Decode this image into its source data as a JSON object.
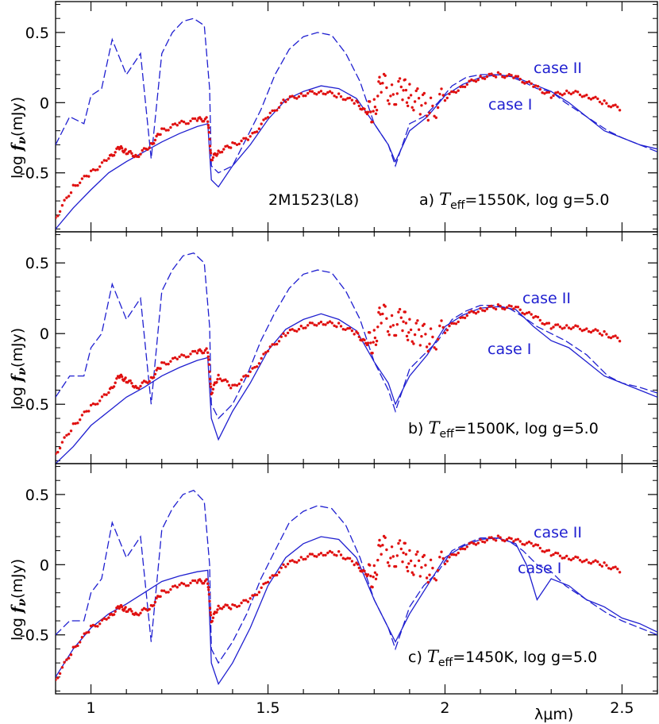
{
  "chart_data": [
    {
      "panel": "a",
      "type": "line",
      "object_label": "2M1523(L8)",
      "label_prefix": "a)",
      "teff_symbol": "T",
      "teff_sub": "eff",
      "teff_value": "=1550K, log g=5.0",
      "ylabel_prefix": "log",
      "ylabel_f": "f",
      "ylabel_nu": "ν",
      "ylabel_unit": "(mJy)",
      "case_ii_label": "case II",
      "case_i_label": "case I",
      "xlim": [
        0.9,
        2.6
      ],
      "ylim": [
        -0.92,
        0.72
      ],
      "yticks": [
        "0.5",
        "0",
        "-0.5"
      ],
      "ytick_values": [
        0.5,
        0,
        -0.5
      ],
      "series": [
        {
          "name": "",
          "style": "dashed",
          "color": "#1f1fd0",
          "x": [
            0.9,
            0.94,
            0.98,
            1.0,
            1.03,
            1.06,
            1.1,
            1.14,
            1.17,
            1.2,
            1.23,
            1.26,
            1.29,
            1.32,
            1.335,
            1.34,
            1.36,
            1.4,
            1.44,
            1.48,
            1.52,
            1.56,
            1.6,
            1.64,
            1.68,
            1.72,
            1.76,
            1.8,
            1.84,
            1.86,
            1.9,
            1.94,
            1.98,
            2.02,
            2.06,
            2.1,
            2.14,
            2.18,
            2.22,
            2.26,
            2.3,
            2.34,
            2.4,
            2.46,
            2.5,
            2.55,
            2.6
          ],
          "y": [
            -0.3,
            -0.1,
            -0.15,
            0.05,
            0.1,
            0.45,
            0.2,
            0.35,
            -0.4,
            0.35,
            0.5,
            0.58,
            0.6,
            0.55,
            0.1,
            -0.45,
            -0.5,
            -0.45,
            -0.25,
            -0.05,
            0.2,
            0.38,
            0.47,
            0.5,
            0.48,
            0.35,
            0.15,
            -0.15,
            -0.3,
            -0.45,
            -0.15,
            -0.1,
            0.0,
            0.12,
            0.18,
            0.2,
            0.2,
            0.19,
            0.15,
            0.1,
            0.08,
            0.0,
            -0.1,
            -0.2,
            -0.25,
            -0.3,
            -0.35
          ]
        },
        {
          "name": "",
          "style": "solid",
          "color": "#1f1fd0",
          "x": [
            0.9,
            0.95,
            1.0,
            1.05,
            1.1,
            1.15,
            1.2,
            1.25,
            1.3,
            1.33,
            1.34,
            1.36,
            1.4,
            1.45,
            1.5,
            1.55,
            1.6,
            1.65,
            1.7,
            1.75,
            1.8,
            1.84,
            1.86,
            1.9,
            1.95,
            2.0,
            2.05,
            2.1,
            2.15,
            2.2,
            2.25,
            2.3,
            2.35,
            2.4,
            2.45,
            2.5,
            2.55,
            2.6
          ],
          "y": [
            -0.9,
            -0.75,
            -0.62,
            -0.5,
            -0.42,
            -0.35,
            -0.28,
            -0.22,
            -0.17,
            -0.15,
            -0.55,
            -0.6,
            -0.45,
            -0.3,
            -0.12,
            0.02,
            0.08,
            0.12,
            0.1,
            0.03,
            -0.15,
            -0.3,
            -0.42,
            -0.2,
            -0.1,
            0.05,
            0.13,
            0.18,
            0.2,
            0.18,
            0.13,
            0.08,
            0.0,
            -0.1,
            -0.2,
            -0.25,
            -0.3,
            -0.33
          ]
        },
        {
          "name": "",
          "style": "points",
          "color": "#e01010",
          "x": [
            0.9,
            0.95,
            1.0,
            1.05,
            1.08,
            1.1,
            1.13,
            1.17,
            1.2,
            1.25,
            1.3,
            1.33,
            1.34,
            1.36,
            1.4,
            1.45,
            1.5,
            1.55,
            1.6,
            1.65,
            1.7,
            1.75,
            1.78,
            1.8,
            1.82,
            1.85,
            1.88,
            1.9,
            1.93,
            1.96,
            2.0,
            2.05,
            2.1,
            2.15,
            2.2,
            2.25,
            2.3,
            2.35,
            2.4,
            2.45,
            2.5
          ],
          "y": [
            -0.82,
            -0.6,
            -0.5,
            -0.4,
            -0.32,
            -0.35,
            -0.38,
            -0.3,
            -0.2,
            -0.15,
            -0.12,
            -0.12,
            -0.4,
            -0.35,
            -0.3,
            -0.25,
            -0.1,
            0.02,
            0.06,
            0.08,
            0.05,
            0.0,
            -0.08,
            -0.05,
            0.15,
            0.05,
            0.1,
            0.05,
            0.0,
            -0.05,
            0.03,
            0.12,
            0.18,
            0.2,
            0.18,
            0.12,
            0.05,
            0.08,
            0.05,
            0.0,
            -0.05
          ]
        }
      ]
    },
    {
      "panel": "b",
      "type": "line",
      "object_label": "",
      "label_prefix": "b)",
      "teff_symbol": "T",
      "teff_sub": "eff",
      "teff_value": "=1500K, log g=5.0",
      "ylabel_prefix": "log",
      "ylabel_f": "f",
      "ylabel_nu": "ν",
      "ylabel_unit": "(mJy)",
      "case_ii_label": "case II",
      "case_i_label": "case I",
      "xlim": [
        0.9,
        2.6
      ],
      "ylim": [
        -0.92,
        0.72
      ],
      "yticks": [
        "0.5",
        "0",
        "-0.5"
      ],
      "ytick_values": [
        0.5,
        0,
        -0.5
      ],
      "series": [
        {
          "name": "",
          "style": "dashed",
          "color": "#1f1fd0",
          "x": [
            0.9,
            0.94,
            0.98,
            1.0,
            1.03,
            1.06,
            1.1,
            1.14,
            1.17,
            1.2,
            1.23,
            1.26,
            1.29,
            1.32,
            1.335,
            1.34,
            1.36,
            1.4,
            1.44,
            1.48,
            1.52,
            1.56,
            1.6,
            1.64,
            1.68,
            1.72,
            1.76,
            1.8,
            1.84,
            1.86,
            1.9,
            1.94,
            1.98,
            2.02,
            2.06,
            2.1,
            2.14,
            2.18,
            2.22,
            2.26,
            2.3,
            2.34,
            2.4,
            2.46,
            2.5,
            2.55,
            2.6
          ],
          "y": [
            -0.45,
            -0.3,
            -0.3,
            -0.1,
            0.0,
            0.35,
            0.1,
            0.25,
            -0.5,
            0.3,
            0.45,
            0.55,
            0.57,
            0.5,
            0.05,
            -0.5,
            -0.6,
            -0.5,
            -0.3,
            -0.05,
            0.15,
            0.32,
            0.42,
            0.45,
            0.43,
            0.3,
            0.1,
            -0.2,
            -0.4,
            -0.55,
            -0.25,
            -0.15,
            -0.05,
            0.1,
            0.16,
            0.2,
            0.2,
            0.18,
            0.12,
            0.05,
            0.0,
            -0.05,
            -0.15,
            -0.3,
            -0.35,
            -0.38,
            -0.42
          ]
        },
        {
          "name": "",
          "style": "solid",
          "color": "#1f1fd0",
          "x": [
            0.9,
            0.95,
            1.0,
            1.05,
            1.1,
            1.15,
            1.2,
            1.25,
            1.3,
            1.33,
            1.34,
            1.36,
            1.4,
            1.45,
            1.5,
            1.55,
            1.6,
            1.65,
            1.7,
            1.75,
            1.8,
            1.84,
            1.86,
            1.9,
            1.95,
            2.0,
            2.05,
            2.1,
            2.15,
            2.2,
            2.25,
            2.3,
            2.35,
            2.4,
            2.45,
            2.5,
            2.55,
            2.6
          ],
          "y": [
            -0.92,
            -0.8,
            -0.65,
            -0.55,
            -0.45,
            -0.38,
            -0.3,
            -0.24,
            -0.19,
            -0.17,
            -0.6,
            -0.75,
            -0.55,
            -0.35,
            -0.12,
            0.03,
            0.1,
            0.14,
            0.1,
            0.02,
            -0.2,
            -0.35,
            -0.5,
            -0.3,
            -0.15,
            0.05,
            0.13,
            0.18,
            0.19,
            0.17,
            0.05,
            -0.05,
            -0.1,
            -0.2,
            -0.3,
            -0.35,
            -0.4,
            -0.45
          ]
        },
        {
          "name": "",
          "style": "points",
          "color": "#e01010",
          "x": [
            0.9,
            0.95,
            1.0,
            1.05,
            1.08,
            1.1,
            1.13,
            1.17,
            1.2,
            1.25,
            1.3,
            1.33,
            1.34,
            1.36,
            1.4,
            1.45,
            1.5,
            1.55,
            1.6,
            1.65,
            1.7,
            1.75,
            1.78,
            1.8,
            1.82,
            1.85,
            1.88,
            1.9,
            1.93,
            1.96,
            2.0,
            2.05,
            2.1,
            2.15,
            2.2,
            2.25,
            2.3,
            2.35,
            2.4,
            2.45,
            2.5
          ],
          "y": [
            -0.85,
            -0.65,
            -0.52,
            -0.42,
            -0.3,
            -0.33,
            -0.38,
            -0.32,
            -0.22,
            -0.17,
            -0.13,
            -0.12,
            -0.42,
            -0.3,
            -0.38,
            -0.28,
            -0.12,
            0.0,
            0.05,
            0.08,
            0.06,
            0.0,
            -0.08,
            -0.05,
            0.15,
            0.05,
            0.1,
            0.02,
            0.0,
            -0.05,
            0.02,
            0.12,
            0.17,
            0.19,
            0.18,
            0.12,
            0.05,
            0.05,
            0.03,
            0.0,
            -0.05
          ]
        }
      ]
    },
    {
      "panel": "c",
      "type": "line",
      "object_label": "",
      "label_prefix": "c)",
      "teff_symbol": "T",
      "teff_sub": "eff",
      "teff_value": "=1450K, log g=5.0",
      "ylabel_prefix": "log",
      "ylabel_f": "f",
      "ylabel_nu": "ν",
      "ylabel_unit": "(mJy)",
      "case_ii_label": "case II",
      "case_i_label": "case I",
      "xlim": [
        0.9,
        2.6
      ],
      "ylim": [
        -0.92,
        0.72
      ],
      "yticks": [
        "0.5",
        "0",
        "-0.5"
      ],
      "ytick_values": [
        0.5,
        0,
        -0.5
      ],
      "xticks": [
        "1",
        "1.5",
        "2",
        "2.5"
      ],
      "xtick_values": [
        1.0,
        1.5,
        2.0,
        2.5
      ],
      "xlabel": "λμm)",
      "series": [
        {
          "name": "",
          "style": "dashed",
          "color": "#1f1fd0",
          "x": [
            0.9,
            0.94,
            0.98,
            1.0,
            1.03,
            1.06,
            1.1,
            1.14,
            1.17,
            1.2,
            1.23,
            1.26,
            1.29,
            1.32,
            1.335,
            1.34,
            1.36,
            1.4,
            1.44,
            1.48,
            1.52,
            1.56,
            1.6,
            1.64,
            1.68,
            1.72,
            1.76,
            1.8,
            1.84,
            1.86,
            1.9,
            1.94,
            1.98,
            2.02,
            2.06,
            2.1,
            2.14,
            2.18,
            2.22,
            2.26,
            2.3,
            2.34,
            2.4,
            2.46,
            2.5,
            2.55,
            2.6
          ],
          "y": [
            -0.5,
            -0.4,
            -0.4,
            -0.2,
            -0.1,
            0.3,
            0.05,
            0.2,
            -0.55,
            0.25,
            0.4,
            0.5,
            0.53,
            0.45,
            0.0,
            -0.6,
            -0.7,
            -0.55,
            -0.35,
            -0.1,
            0.1,
            0.3,
            0.38,
            0.42,
            0.4,
            0.28,
            0.05,
            -0.25,
            -0.45,
            -0.6,
            -0.3,
            -0.15,
            -0.05,
            0.1,
            0.15,
            0.19,
            0.19,
            0.17,
            0.1,
            0.0,
            -0.05,
            -0.15,
            -0.25,
            -0.35,
            -0.4,
            -0.45,
            -0.5
          ]
        },
        {
          "name": "",
          "style": "solid",
          "color": "#1f1fd0",
          "x": [
            0.9,
            0.95,
            1.0,
            1.05,
            1.1,
            1.15,
            1.2,
            1.25,
            1.3,
            1.33,
            1.34,
            1.36,
            1.4,
            1.45,
            1.5,
            1.55,
            1.6,
            1.65,
            1.7,
            1.75,
            1.8,
            1.84,
            1.86,
            1.9,
            1.95,
            2.0,
            2.05,
            2.1,
            2.15,
            2.2,
            2.23,
            2.26,
            2.3,
            2.35,
            2.4,
            2.45,
            2.5,
            2.55,
            2.6
          ],
          "y": [
            -0.8,
            -0.6,
            -0.45,
            -0.35,
            -0.28,
            -0.2,
            -0.12,
            -0.08,
            -0.05,
            -0.04,
            -0.7,
            -0.85,
            -0.7,
            -0.45,
            -0.15,
            0.05,
            0.15,
            0.2,
            0.18,
            0.05,
            -0.25,
            -0.45,
            -0.55,
            -0.35,
            -0.15,
            0.05,
            0.13,
            0.18,
            0.19,
            0.15,
            0.0,
            -0.25,
            -0.1,
            -0.15,
            -0.25,
            -0.3,
            -0.38,
            -0.42,
            -0.48
          ]
        },
        {
          "name": "",
          "style": "points",
          "color": "#e01010",
          "x": [
            0.9,
            0.95,
            1.0,
            1.05,
            1.08,
            1.1,
            1.13,
            1.17,
            1.2,
            1.25,
            1.3,
            1.33,
            1.34,
            1.36,
            1.4,
            1.45,
            1.5,
            1.55,
            1.6,
            1.65,
            1.7,
            1.75,
            1.78,
            1.8,
            1.82,
            1.85,
            1.88,
            1.9,
            1.93,
            1.96,
            2.0,
            2.05,
            2.1,
            2.15,
            2.2,
            2.25,
            2.3,
            2.35,
            2.4,
            2.45,
            2.5
          ],
          "y": [
            -0.82,
            -0.6,
            -0.45,
            -0.38,
            -0.3,
            -0.32,
            -0.35,
            -0.3,
            -0.2,
            -0.15,
            -0.12,
            -0.12,
            -0.4,
            -0.3,
            -0.3,
            -0.25,
            -0.12,
            0.0,
            0.05,
            0.08,
            0.08,
            0.0,
            -0.08,
            -0.08,
            0.15,
            0.05,
            0.1,
            0.02,
            0.0,
            -0.05,
            0.02,
            0.12,
            0.17,
            0.19,
            0.17,
            0.14,
            0.08,
            0.05,
            0.03,
            0.0,
            -0.05
          ]
        }
      ]
    }
  ]
}
